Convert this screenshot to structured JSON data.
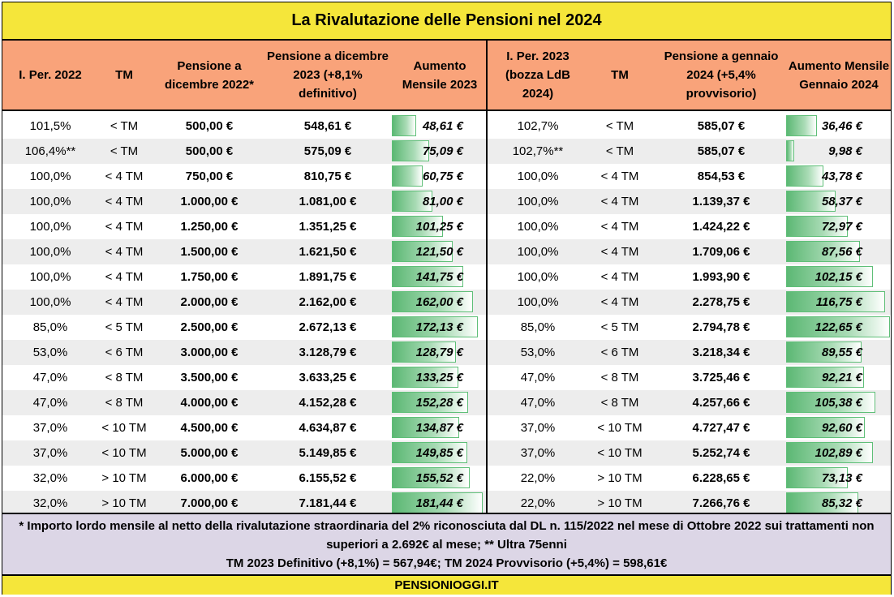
{
  "title": "La Rivalutazione delle Pensioni nel 2024",
  "headers": {
    "left": [
      "I. Per. 2022",
      "TM",
      "Pensione a dicembre 2022*",
      "Pensione a dicembre 2023 (+8,1% definitivo)",
      "Aumento Mensile 2023"
    ],
    "right": [
      "I. Per. 2023 (bozza LdB 2024)",
      "TM",
      "Pensione a gennaio 2024 (+5,4% provvisorio)",
      "Aumento Mensile Gennaio 2024"
    ]
  },
  "rows": [
    {
      "iper2022": "101,5%",
      "tm1": "< TM",
      "dic2022": "500,00 €",
      "dic2023": "548,61 €",
      "aum2023": "48,61 €",
      "aum2023_value": 48.61,
      "iper2023": "102,7%",
      "tm2": "< TM",
      "gen2024": "585,07 €",
      "aum2024": "36,46 €",
      "aum2024_value": 36.46
    },
    {
      "iper2022": "106,4%**",
      "tm1": "< TM",
      "dic2022": "500,00 €",
      "dic2023": "575,09 €",
      "aum2023": "75,09 €",
      "aum2023_value": 75.09,
      "iper2023": "102,7%**",
      "tm2": "< TM",
      "gen2024": "585,07 €",
      "aum2024": "9,98 €",
      "aum2024_value": 9.98
    },
    {
      "iper2022": "100,0%",
      "tm1": "< 4 TM",
      "dic2022": "750,00 €",
      "dic2023": "810,75 €",
      "aum2023": "60,75 €",
      "aum2023_value": 60.75,
      "iper2023": "100,0%",
      "tm2": "< 4 TM",
      "gen2024": "854,53 €",
      "aum2024": "43,78 €",
      "aum2024_value": 43.78
    },
    {
      "iper2022": "100,0%",
      "tm1": "< 4 TM",
      "dic2022": "1.000,00 €",
      "dic2023": "1.081,00 €",
      "aum2023": "81,00 €",
      "aum2023_value": 81.0,
      "iper2023": "100,0%",
      "tm2": "< 4 TM",
      "gen2024": "1.139,37 €",
      "aum2024": "58,37 €",
      "aum2024_value": 58.37
    },
    {
      "iper2022": "100,0%",
      "tm1": "< 4 TM",
      "dic2022": "1.250,00 €",
      "dic2023": "1.351,25 €",
      "aum2023": "101,25 €",
      "aum2023_value": 101.25,
      "iper2023": "100,0%",
      "tm2": "< 4 TM",
      "gen2024": "1.424,22 €",
      "aum2024": "72,97 €",
      "aum2024_value": 72.97
    },
    {
      "iper2022": "100,0%",
      "tm1": "< 4 TM",
      "dic2022": "1.500,00 €",
      "dic2023": "1.621,50 €",
      "aum2023": "121,50 €",
      "aum2023_value": 121.5,
      "iper2023": "100,0%",
      "tm2": "< 4 TM",
      "gen2024": "1.709,06 €",
      "aum2024": "87,56 €",
      "aum2024_value": 87.56
    },
    {
      "iper2022": "100,0%",
      "tm1": "< 4 TM",
      "dic2022": "1.750,00 €",
      "dic2023": "1.891,75 €",
      "aum2023": "141,75 €",
      "aum2023_value": 141.75,
      "iper2023": "100,0%",
      "tm2": "< 4 TM",
      "gen2024": "1.993,90 €",
      "aum2024": "102,15 €",
      "aum2024_value": 102.15
    },
    {
      "iper2022": "100,0%",
      "tm1": "< 4 TM",
      "dic2022": "2.000,00 €",
      "dic2023": "2.162,00 €",
      "aum2023": "162,00 €",
      "aum2023_value": 162.0,
      "iper2023": "100,0%",
      "tm2": "< 4 TM",
      "gen2024": "2.278,75 €",
      "aum2024": "116,75 €",
      "aum2024_value": 116.75
    },
    {
      "iper2022": "85,0%",
      "tm1": "< 5 TM",
      "dic2022": "2.500,00 €",
      "dic2023": "2.672,13 €",
      "aum2023": "172,13 €",
      "aum2023_value": 172.13,
      "iper2023": "85,0%",
      "tm2": "< 5 TM",
      "gen2024": "2.794,78 €",
      "aum2024": "122,65 €",
      "aum2024_value": 122.65
    },
    {
      "iper2022": "53,0%",
      "tm1": "< 6 TM",
      "dic2022": "3.000,00 €",
      "dic2023": "3.128,79 €",
      "aum2023": "128,79 €",
      "aum2023_value": 128.79,
      "iper2023": "53,0%",
      "tm2": "< 6 TM",
      "gen2024": "3.218,34 €",
      "aum2024": "89,55 €",
      "aum2024_value": 89.55
    },
    {
      "iper2022": "47,0%",
      "tm1": "< 8 TM",
      "dic2022": "3.500,00 €",
      "dic2023": "3.633,25 €",
      "aum2023": "133,25 €",
      "aum2023_value": 133.25,
      "iper2023": "47,0%",
      "tm2": "< 8 TM",
      "gen2024": "3.725,46 €",
      "aum2024": "92,21 €",
      "aum2024_value": 92.21
    },
    {
      "iper2022": "47,0%",
      "tm1": "< 8 TM",
      "dic2022": "4.000,00 €",
      "dic2023": "4.152,28 €",
      "aum2023": "152,28 €",
      "aum2023_value": 152.28,
      "iper2023": "47,0%",
      "tm2": "< 8 TM",
      "gen2024": "4.257,66 €",
      "aum2024": "105,38 €",
      "aum2024_value": 105.38
    },
    {
      "iper2022": "37,0%",
      "tm1": "< 10 TM",
      "dic2022": "4.500,00 €",
      "dic2023": "4.634,87 €",
      "aum2023": "134,87 €",
      "aum2023_value": 134.87,
      "iper2023": "37,0%",
      "tm2": "< 10 TM",
      "gen2024": "4.727,47 €",
      "aum2024": "92,60 €",
      "aum2024_value": 92.6
    },
    {
      "iper2022": "37,0%",
      "tm1": "< 10 TM",
      "dic2022": "5.000,00 €",
      "dic2023": "5.149,85 €",
      "aum2023": "149,85 €",
      "aum2023_value": 149.85,
      "iper2023": "37,0%",
      "tm2": "< 10 TM",
      "gen2024": "5.252,74 €",
      "aum2024": "102,89 €",
      "aum2024_value": 102.89
    },
    {
      "iper2022": "32,0%",
      "tm1": "> 10 TM",
      "dic2022": "6.000,00 €",
      "dic2023": "6.155,52 €",
      "aum2023": "155,52 €",
      "aum2023_value": 155.52,
      "iper2023": "22,0%",
      "tm2": "> 10 TM",
      "gen2024": "6.228,65 €",
      "aum2024": "73,13 €",
      "aum2024_value": 73.13
    },
    {
      "iper2022": "32,0%",
      "tm1": "> 10 TM",
      "dic2022": "7.000,00 €",
      "dic2023": "7.181,44 €",
      "aum2023": "181,44 €",
      "aum2023_value": 181.44,
      "iper2023": "22,0%",
      "tm2": "> 10 TM",
      "gen2024": "7.266,76 €",
      "aum2024": "85,32 €",
      "aum2024_value": 85.32
    }
  ],
  "footer": {
    "line1": "* Importo lordo mensile al netto della rivalutazione straordinaria del 2% riconosciuta dal DL n. 115/2022 nel mese di Ottobre 2022 sui trattamenti non",
    "line2": "superiori a 2.692€ al mese; ** Ultra 75enni",
    "line3": "TM 2023 Definitivo (+8,1%) = 567,94€; TM 2024 Provvisorio (+5,4%) = 598,61€"
  },
  "source": "PENSIONIOGGI.IT",
  "colors": {
    "title_bg": "#f5e63a",
    "header_bg": "#f9a37a",
    "footer_bg": "#dcd6e6",
    "bar_green": "#5cb874",
    "row_alt": "#ededed"
  }
}
